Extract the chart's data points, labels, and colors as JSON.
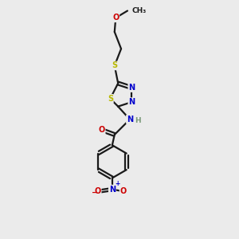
{
  "background_color": "#ebebeb",
  "bond_color": "#1a1a1a",
  "colors": {
    "S": "#b8b800",
    "N": "#0000cc",
    "O": "#cc0000",
    "C": "#1a1a1a",
    "H": "#7a9a7a"
  },
  "figsize": [
    3.0,
    3.0
  ],
  "dpi": 100
}
